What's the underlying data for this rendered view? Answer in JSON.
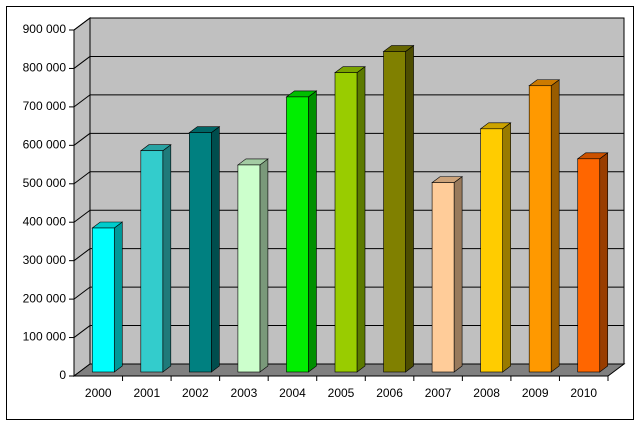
{
  "chart_data": {
    "type": "bar3d",
    "categories": [
      "2000",
      "2001",
      "2002",
      "2003",
      "2004",
      "2005",
      "2006",
      "2007",
      "2008",
      "2009",
      "2010"
    ],
    "values": [
      385000,
      586000,
      633000,
      549000,
      726000,
      789000,
      844000,
      503000,
      643000,
      755000,
      565000
    ],
    "colors": [
      "#00ffff",
      "#33cccc",
      "#008080",
      "#ccffcc",
      "#00ee00",
      "#99cc00",
      "#808000",
      "#ffcc99",
      "#ffcc00",
      "#ff9900",
      "#ff6600"
    ],
    "ylim": [
      0,
      900000
    ],
    "yticks": [
      {
        "value": 0,
        "label": "0"
      },
      {
        "value": 100000,
        "label": "100 000"
      },
      {
        "value": 200000,
        "label": "200 000"
      },
      {
        "value": 300000,
        "label": "300 000"
      },
      {
        "value": 400000,
        "label": "400 000"
      },
      {
        "value": 500000,
        "label": "500 000"
      },
      {
        "value": 600000,
        "label": "600 000"
      },
      {
        "value": 700000,
        "label": "700 000"
      },
      {
        "value": 800000,
        "label": "800 000"
      },
      {
        "value": 900000,
        "label": "900 000"
      }
    ],
    "grid": true
  }
}
